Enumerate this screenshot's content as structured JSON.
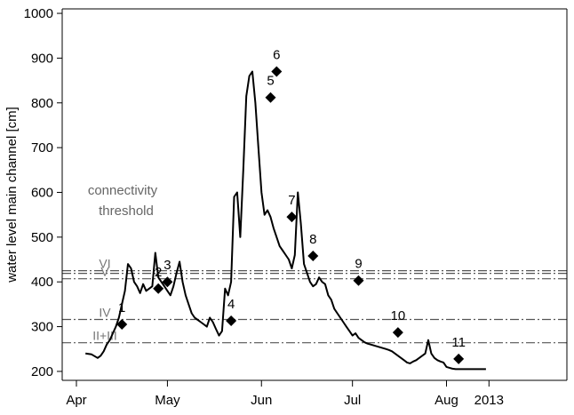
{
  "chart_data": {
    "type": "line",
    "title": "",
    "xlabel": "",
    "ylabel": "water level main channel [cm]",
    "ylim": [
      180,
      1010
    ],
    "xlim": [
      0,
      157
    ],
    "yticks": [
      200,
      300,
      400,
      500,
      600,
      700,
      800,
      900,
      1000
    ],
    "xticks": [
      {
        "label": "Apr",
        "x": 0
      },
      {
        "label": "May",
        "x": 30
      },
      {
        "label": "Jun",
        "x": 61
      },
      {
        "label": "Jul",
        "x": 91
      },
      {
        "label": "Aug",
        "x": 122
      },
      {
        "label": "2013",
        "x": 136
      }
    ],
    "grid": false,
    "annotation": {
      "lines": [
        "connectivity",
        "threshold"
      ]
    },
    "series": [
      {
        "color": "#000000",
        "x": [
          3,
          5,
          7,
          8,
          9,
          10,
          11,
          12,
          13,
          14,
          15,
          16,
          17,
          18,
          19,
          20,
          21,
          22,
          23,
          24,
          25,
          26,
          27,
          28,
          29,
          30,
          31,
          32,
          33,
          34,
          35,
          36,
          37,
          38,
          39,
          40,
          41,
          42,
          43,
          44,
          45,
          46,
          47,
          48,
          49,
          50,
          51,
          52,
          53,
          54,
          55,
          56,
          57,
          58,
          59,
          60,
          61,
          62,
          63,
          64,
          65,
          66,
          67,
          68,
          69,
          70,
          71,
          72,
          73,
          74,
          75,
          76,
          77,
          78,
          79,
          80,
          81,
          82,
          83,
          84,
          85,
          86,
          87,
          88,
          89,
          90,
          91,
          92,
          93,
          94,
          95,
          96,
          97,
          98,
          99,
          100,
          101,
          102,
          103,
          104,
          105,
          106,
          107,
          108,
          109,
          110,
          111,
          112,
          113,
          114,
          115,
          116,
          117,
          118,
          119,
          120,
          121,
          122,
          123,
          124,
          125,
          126,
          127,
          128,
          129,
          130,
          131,
          132,
          133,
          134,
          135
        ],
        "y": [
          240,
          238,
          230,
          235,
          245,
          260,
          270,
          285,
          300,
          320,
          350,
          380,
          440,
          430,
          400,
          390,
          375,
          395,
          380,
          385,
          390,
          465,
          410,
          400,
          390,
          380,
          370,
          390,
          420,
          445,
          400,
          370,
          350,
          330,
          320,
          315,
          310,
          305,
          300,
          320,
          310,
          295,
          280,
          290,
          385,
          370,
          400,
          590,
          600,
          500,
          650,
          815,
          860,
          870,
          800,
          700,
          600,
          550,
          560,
          545,
          520,
          500,
          480,
          470,
          460,
          450,
          430,
          460,
          600,
          530,
          440,
          420,
          400,
          390,
          395,
          410,
          400,
          395,
          370,
          360,
          340,
          330,
          320,
          310,
          300,
          290,
          280,
          285,
          275,
          270,
          265,
          262,
          260,
          258,
          256,
          254,
          252,
          250,
          248,
          245,
          240,
          235,
          230,
          225,
          220,
          218,
          222,
          225,
          230,
          235,
          240,
          270,
          240,
          230,
          225,
          222,
          220,
          210,
          208,
          206,
          205,
          205,
          205,
          205,
          205,
          205,
          205,
          205,
          205,
          205,
          205
        ]
      }
    ],
    "samples": [
      {
        "label": "1",
        "x": 15,
        "y": 305
      },
      {
        "label": "2",
        "x": 27,
        "y": 385
      },
      {
        "label": "3",
        "x": 30,
        "y": 400
      },
      {
        "label": "4",
        "x": 51,
        "y": 313
      },
      {
        "label": "5",
        "x": 64,
        "y": 812
      },
      {
        "label": "6",
        "x": 66,
        "y": 870
      },
      {
        "label": "7",
        "x": 71,
        "y": 545
      },
      {
        "label": "8",
        "x": 78,
        "y": 458
      },
      {
        "label": "9",
        "x": 93,
        "y": 403
      },
      {
        "label": "10",
        "x": 106,
        "y": 287
      },
      {
        "label": "11",
        "x": 126,
        "y": 228
      }
    ],
    "thresholds": [
      {
        "label": "VI",
        "y": 425
      },
      {
        "label": "",
        "y": 419
      },
      {
        "label": "V",
        "y": 407
      },
      {
        "label": "IV",
        "y": 316
      },
      {
        "label": "II+III",
        "y": 264
      }
    ]
  }
}
